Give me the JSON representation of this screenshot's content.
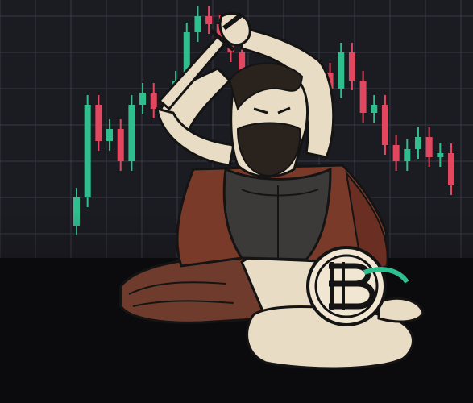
{
  "scene": {
    "description_icons": [
      "candlestick-chart-background",
      "bearded-warrior-figure",
      "dagger-icon",
      "bitcoin-coin-icon",
      "fallen-body"
    ],
    "colors": {
      "background": "#1b1b22",
      "grid": "#3a3a46",
      "bull": "#2fbf8f",
      "bear": "#e2475f",
      "skin": "#e9dcc4",
      "cloak": "#7a3a2a",
      "armor": "#3b3a38",
      "coin": "#f0e6d2",
      "ink": "#141414"
    }
  },
  "candles": [
    {
      "dir": "up",
      "o": 20,
      "c": 55
    },
    {
      "dir": "up",
      "o": 55,
      "c": 170
    },
    {
      "dir": "down",
      "o": 170,
      "c": 125
    },
    {
      "dir": "up",
      "o": 125,
      "c": 140
    },
    {
      "dir": "down",
      "o": 140,
      "c": 100
    },
    {
      "dir": "up",
      "o": 100,
      "c": 170
    },
    {
      "dir": "up",
      "o": 170,
      "c": 185
    },
    {
      "dir": "down",
      "o": 185,
      "c": 165
    },
    {
      "dir": "down",
      "o": 165,
      "c": 160
    },
    {
      "dir": "up",
      "o": 160,
      "c": 200
    },
    {
      "dir": "up",
      "o": 200,
      "c": 260
    },
    {
      "dir": "up",
      "o": 260,
      "c": 280
    },
    {
      "dir": "down",
      "o": 280,
      "c": 270
    },
    {
      "dir": "down",
      "o": 270,
      "c": 250
    },
    {
      "dir": "down",
      "o": 250,
      "c": 235
    },
    {
      "dir": "down",
      "o": 235,
      "c": 195
    },
    {
      "dir": "up",
      "o": 195,
      "c": 205
    },
    {
      "dir": "down",
      "o": 205,
      "c": 180
    },
    {
      "dir": "up",
      "o": 180,
      "c": 185
    },
    {
      "dir": "down",
      "o": 185,
      "c": 170
    },
    {
      "dir": "up",
      "o": 170,
      "c": 190
    },
    {
      "dir": "up",
      "o": 190,
      "c": 200
    },
    {
      "dir": "up",
      "o": 200,
      "c": 210
    },
    {
      "dir": "down",
      "o": 210,
      "c": 190
    },
    {
      "dir": "up",
      "o": 190,
      "c": 235
    },
    {
      "dir": "down",
      "o": 235,
      "c": 200
    },
    {
      "dir": "down",
      "o": 200,
      "c": 160
    },
    {
      "dir": "up",
      "o": 160,
      "c": 170
    },
    {
      "dir": "down",
      "o": 170,
      "c": 120
    },
    {
      "dir": "down",
      "o": 120,
      "c": 100
    },
    {
      "dir": "up",
      "o": 100,
      "c": 115
    },
    {
      "dir": "up",
      "o": 115,
      "c": 130
    },
    {
      "dir": "down",
      "o": 130,
      "c": 105
    },
    {
      "dir": "up",
      "o": 105,
      "c": 110
    },
    {
      "dir": "down",
      "o": 110,
      "c": 70
    }
  ]
}
